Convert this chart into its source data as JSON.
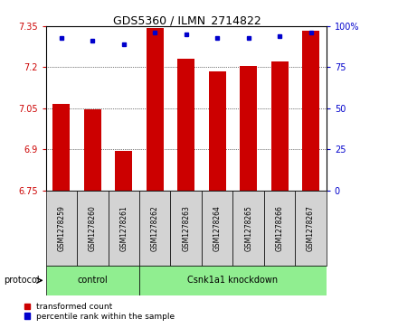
{
  "title": "GDS5360 / ILMN_2714822",
  "samples": [
    "GSM1278259",
    "GSM1278260",
    "GSM1278261",
    "GSM1278262",
    "GSM1278263",
    "GSM1278264",
    "GSM1278265",
    "GSM1278266",
    "GSM1278267"
  ],
  "red_values": [
    7.065,
    7.045,
    6.895,
    7.345,
    7.23,
    7.185,
    7.205,
    7.22,
    7.335
  ],
  "blue_values": [
    93,
    91,
    89,
    96,
    95,
    93,
    93,
    94,
    96
  ],
  "y_min": 6.75,
  "y_max": 7.35,
  "y_ticks": [
    6.75,
    6.9,
    7.05,
    7.2,
    7.35
  ],
  "y2_ticks": [
    0,
    25,
    50,
    75,
    100
  ],
  "control_count": 3,
  "bar_color": "#cc0000",
  "dot_color": "#0000cc",
  "label_bg": "#d3d3d3",
  "group_bg": "#90ee90",
  "bar_width": 0.55
}
